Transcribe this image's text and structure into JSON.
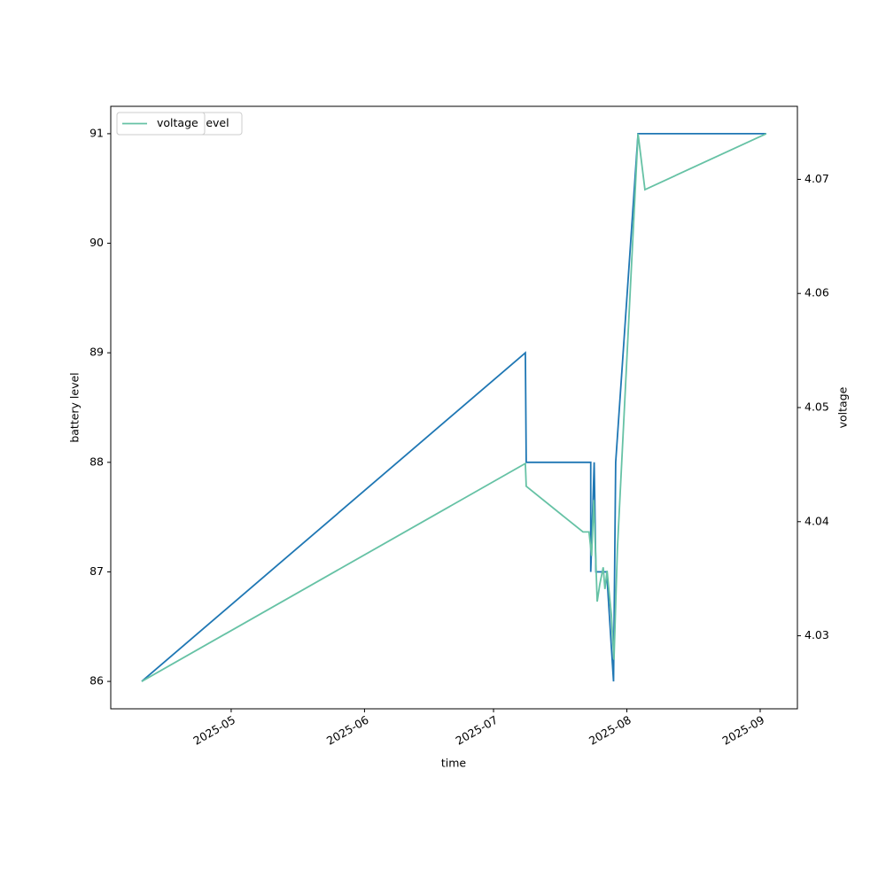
{
  "chart_data": {
    "type": "line",
    "xlabel": "time",
    "ylabel": "battery level",
    "y2label": "voltage",
    "xlim": [
      93.0,
      252.65
    ],
    "xticks": [
      {
        "value": 121,
        "label": "2025-05"
      },
      {
        "value": 152,
        "label": "2025-06"
      },
      {
        "value": 182,
        "label": "2025-07"
      },
      {
        "value": 213,
        "label": "2025-08"
      },
      {
        "value": 244,
        "label": "2025-09"
      }
    ],
    "ylim": [
      85.75,
      91.25
    ],
    "yticks": [
      86,
      87,
      88,
      89,
      90,
      91
    ],
    "y2lim": [
      4.0236,
      4.0764
    ],
    "y2ticks": [
      4.03,
      4.04,
      4.05,
      4.06,
      4.07
    ],
    "grid": false,
    "legend": "upper left",
    "series": [
      {
        "name": "battery_level",
        "color": "#1f77b4",
        "x": [
          100.2,
          189.4,
          189.6,
          204.6,
          204.6,
          205.4,
          205.8,
          208.3,
          209.9,
          210.4,
          215.6,
          245.4
        ],
        "values": [
          86,
          89,
          88,
          88,
          87,
          88,
          87,
          87,
          86,
          88,
          91,
          91
        ]
      },
      {
        "name": "voltage",
        "color": "#66c2a5",
        "axis": "y2",
        "x": [
          100.2,
          189.4,
          189.6,
          202.8,
          204.2,
          204.8,
          205.3,
          206.1,
          206.7,
          207.5,
          207.9,
          208.4,
          209.4,
          210.0,
          210.8,
          215.6,
          217.2,
          245.4
        ],
        "values": [
          4.026,
          4.0451,
          4.0431,
          4.0391,
          4.0391,
          4.037,
          4.0419,
          4.033,
          4.0345,
          4.036,
          4.0341,
          4.0357,
          4.0318,
          4.0279,
          4.0376,
          4.074,
          4.0691,
          4.074
        ]
      }
    ]
  }
}
